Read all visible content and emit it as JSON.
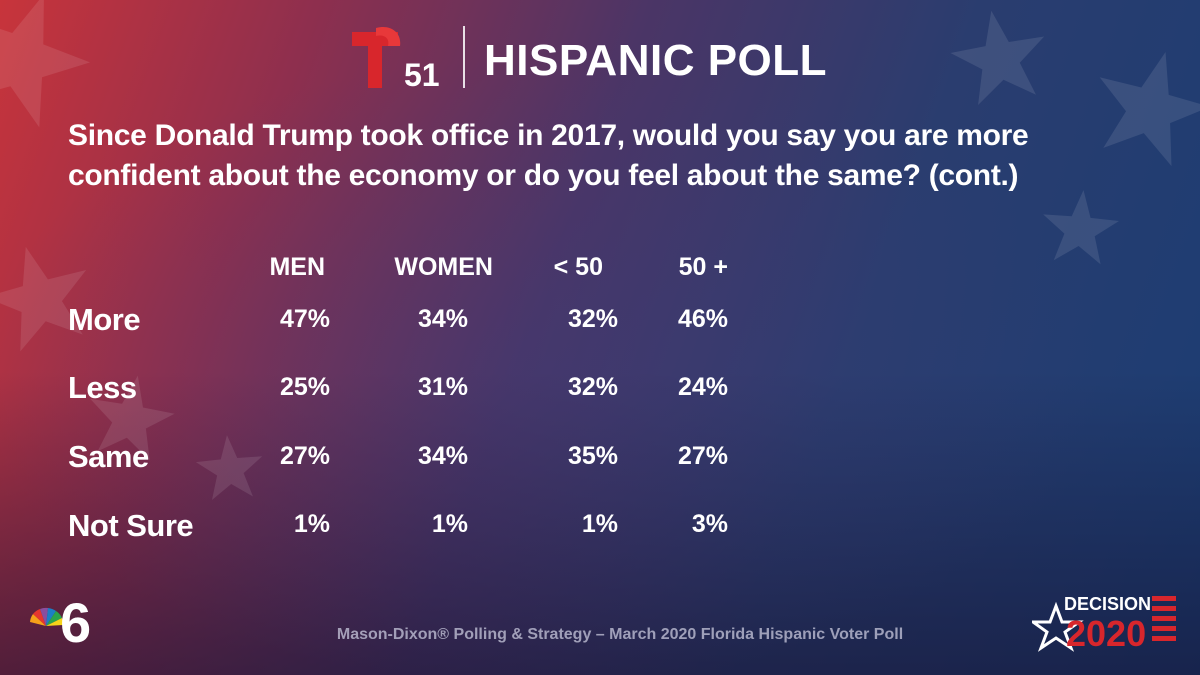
{
  "header": {
    "logo_number": "51",
    "title": "HISPANIC POLL"
  },
  "question": "Since Donald Trump took office in 2017, would you say you are more confident about the economy or do you feel about the same? (cont.)",
  "chart_data": {
    "type": "table",
    "columns": [
      "MEN",
      "WOMEN",
      "< 50",
      "50 +"
    ],
    "rows": [
      {
        "label": "More",
        "values": [
          "47%",
          "34%",
          "32%",
          "46%"
        ]
      },
      {
        "label": "Less",
        "values": [
          "25%",
          "31%",
          "32%",
          "24%"
        ]
      },
      {
        "label": "Same",
        "values": [
          "27%",
          "34%",
          "35%",
          "27%"
        ]
      },
      {
        "label": "Not Sure",
        "values": [
          "1%",
          "1%",
          "1%",
          "3%"
        ]
      }
    ]
  },
  "footer": {
    "source": "Mason-Dixon® Polling & Strategy – March 2020 Florida Hispanic Voter Poll",
    "badge_word": "DECISION",
    "badge_year": "2020",
    "station_number": "6"
  },
  "colors": {
    "telemundo_red": "#d8262c",
    "background_red": "#c8343b",
    "background_blue": "#1b3d73"
  },
  "icons": [
    "telemundo-t-logo",
    "nbc-peacock-icon",
    "decision-2020-star-icon"
  ]
}
